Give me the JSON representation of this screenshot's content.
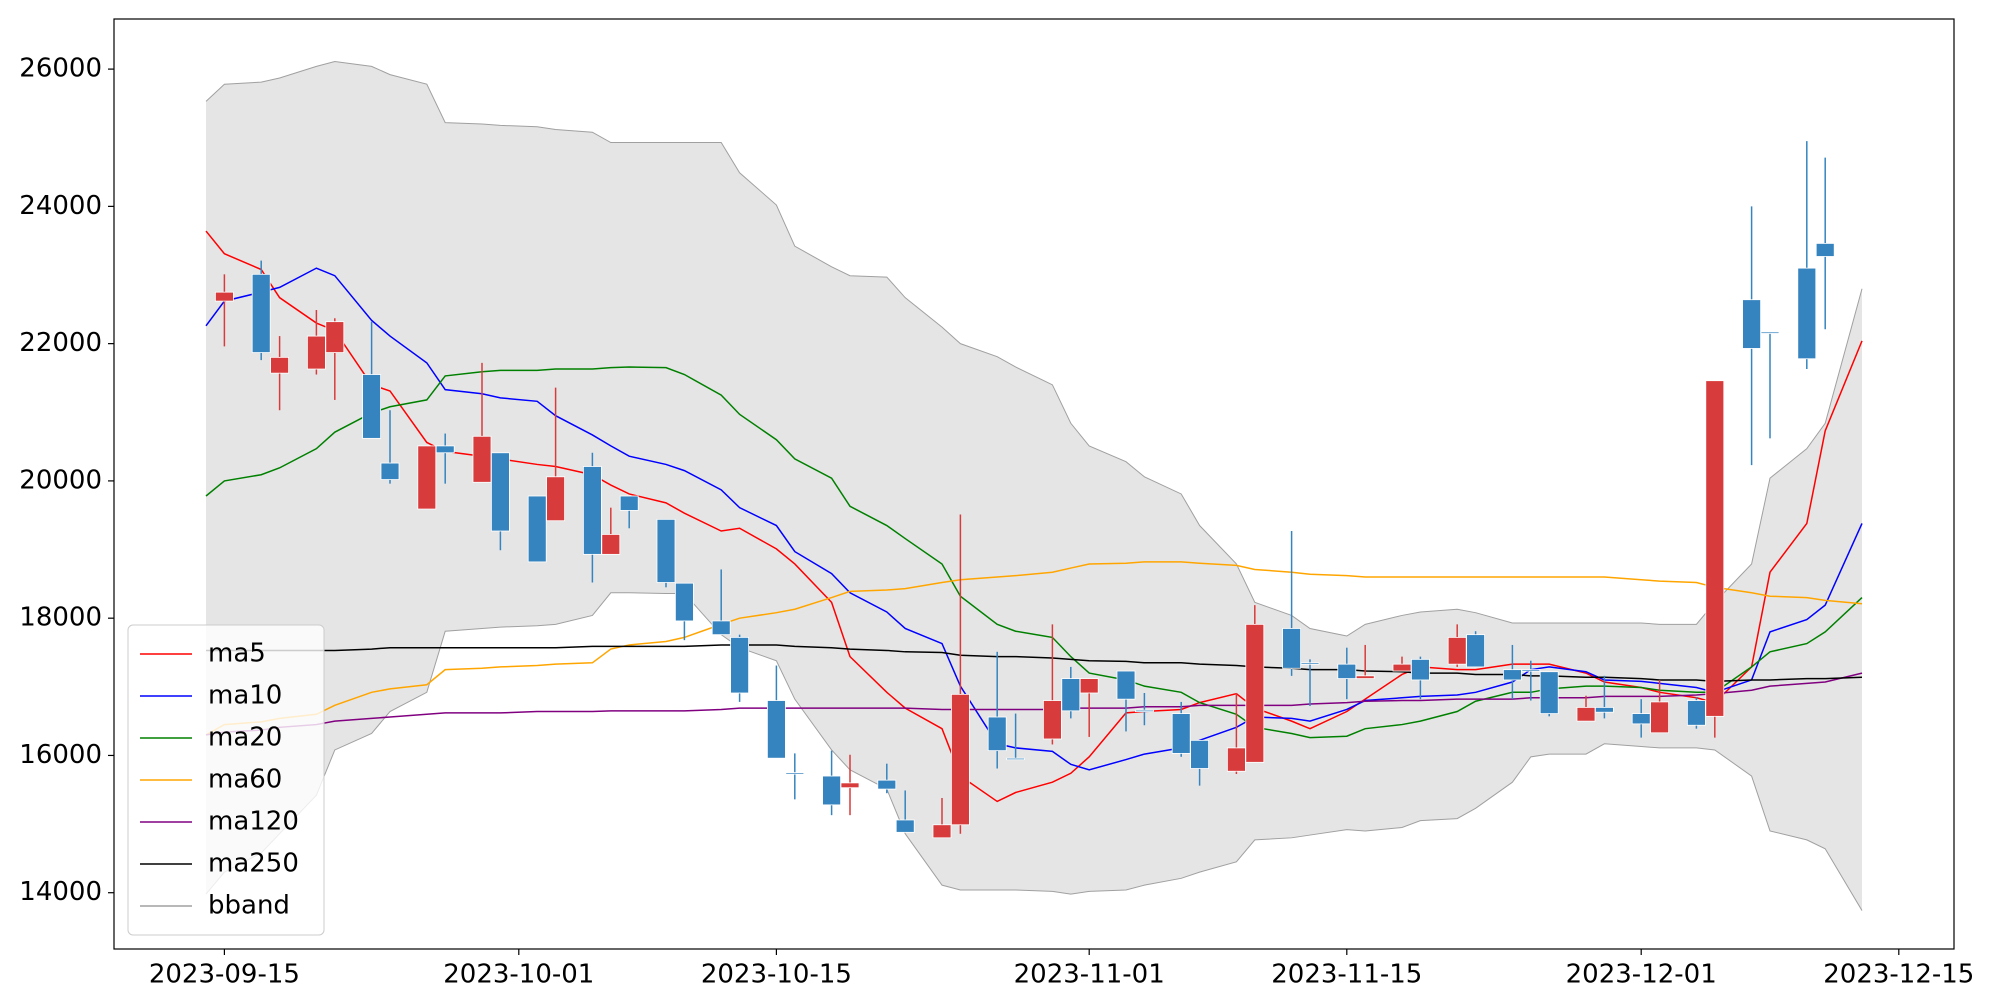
{
  "chart_data": {
    "type": "candlestick",
    "x": [
      "2023-09-14",
      "2023-09-15",
      "2023-09-17",
      "2023-09-18",
      "2023-09-20",
      "2023-09-21",
      "2023-09-23",
      "2023-09-24",
      "2023-09-26",
      "2023-09-27",
      "2023-09-29",
      "2023-09-30",
      "2023-10-02",
      "2023-10-03",
      "2023-10-05",
      "2023-10-06",
      "2023-10-07",
      "2023-10-09",
      "2023-10-10",
      "2023-10-12",
      "2023-10-13",
      "2023-10-15",
      "2023-10-16",
      "2023-10-18",
      "2023-10-19",
      "2023-10-21",
      "2023-10-22",
      "2023-10-24",
      "2023-10-25",
      "2023-10-27",
      "2023-10-28",
      "2023-10-30",
      "2023-10-31",
      "2023-11-01",
      "2023-11-03",
      "2023-11-04",
      "2023-11-06",
      "2023-11-07",
      "2023-11-09",
      "2023-11-10",
      "2023-11-12",
      "2023-11-13",
      "2023-11-15",
      "2023-11-16",
      "2023-11-18",
      "2023-11-19",
      "2023-11-21",
      "2023-11-22",
      "2023-11-24",
      "2023-11-25",
      "2023-11-26",
      "2023-11-28",
      "2023-11-29",
      "2023-12-01",
      "2023-12-02",
      "2023-12-04",
      "2023-12-05",
      "2023-12-07",
      "2023-12-08",
      "2023-12-10",
      "2023-12-11",
      "2023-12-13"
    ],
    "candles": {
      "up_color": "#d83b3b",
      "down_color": "#3584bf",
      "open": [
        null,
        22620,
        23010,
        21570,
        21630,
        21870,
        21550,
        20260,
        19590,
        20510,
        19980,
        20410,
        19780,
        19420,
        20210,
        18930,
        19780,
        19440,
        18510,
        17960,
        17720,
        16800,
        15750,
        15700,
        15530,
        15640,
        15060,
        14800,
        14990,
        16560,
        15960,
        16240,
        17120,
        16910,
        17230,
        16660,
        16610,
        16220,
        15770,
        15900,
        17850,
        17350,
        17330,
        17120,
        17230,
        17400,
        17330,
        17760,
        17250,
        17250,
        17220,
        16500,
        16700,
        16610,
        16330,
        16800,
        16570,
        22640,
        22170,
        23100,
        23460,
        null
      ],
      "high": [
        null,
        23010,
        23210,
        22110,
        22490,
        22370,
        22320,
        21030,
        20510,
        20690,
        21720,
        20410,
        19780,
        21360,
        20410,
        19610,
        19780,
        19440,
        18510,
        18710,
        17760,
        17310,
        16030,
        16070,
        16010,
        15880,
        15490,
        15380,
        19510,
        17510,
        16610,
        17910,
        17290,
        17120,
        17230,
        16910,
        16780,
        16220,
        16910,
        18190,
        19270,
        17400,
        17570,
        17610,
        17440,
        17440,
        17910,
        17810,
        17610,
        17380,
        17220,
        16870,
        17160,
        16820,
        17100,
        16850,
        21460,
        24000,
        22170,
        24950,
        24710,
        null
      ],
      "low": [
        null,
        21960,
        21760,
        21030,
        21550,
        21180,
        20620,
        19960,
        19590,
        19960,
        19980,
        18990,
        18820,
        19420,
        18520,
        18930,
        19310,
        18450,
        17680,
        17760,
        16780,
        15960,
        15360,
        15130,
        15130,
        15450,
        14880,
        14800,
        14860,
        15810,
        15940,
        16160,
        16540,
        16270,
        16350,
        16440,
        15980,
        15560,
        15730,
        15900,
        17160,
        16720,
        16820,
        17120,
        17230,
        16820,
        17290,
        17290,
        16820,
        16800,
        16570,
        16500,
        16540,
        16260,
        16330,
        16390,
        16260,
        20230,
        20620,
        21630,
        22210,
        null
      ],
      "close": [
        null,
        22750,
        21870,
        21800,
        22110,
        22320,
        20620,
        20020,
        20510,
        20410,
        20650,
        19270,
        18820,
        20060,
        18930,
        19220,
        19570,
        18520,
        17960,
        17760,
        16910,
        15960,
        15730,
        15280,
        15600,
        15510,
        14880,
        14990,
        16890,
        16070,
        15940,
        16800,
        16650,
        17120,
        16820,
        16640,
        16030,
        15810,
        16110,
        17910,
        17270,
        17330,
        17120,
        17160,
        17330,
        17100,
        17720,
        17290,
        17100,
        17230,
        16610,
        16700,
        16630,
        16460,
        16780,
        16440,
        21460,
        21930,
        22150,
        21780,
        23270,
        null
      ]
    },
    "series": [
      {
        "name": "ma5",
        "color": "#ff0000",
        "values": [
          23640,
          23310,
          23080,
          22670,
          22300,
          22190,
          21400,
          21310,
          20560,
          20430,
          20360,
          20320,
          20240,
          20210,
          20090,
          19940,
          19810,
          19680,
          19530,
          19270,
          19310,
          19010,
          18790,
          18230,
          17440,
          16920,
          16690,
          16390,
          15700,
          15330,
          15460,
          15610,
          15740,
          15980,
          16620,
          16640,
          16670,
          16770,
          16900,
          16690,
          16500,
          16390,
          16640,
          16820,
          17180,
          17290,
          17250,
          17250,
          17330,
          17330,
          17330,
          17200,
          17070,
          16990,
          16920,
          16840,
          16770,
          17290,
          18670,
          19380,
          20730,
          22040
        ]
      },
      {
        "name": "ma10",
        "color": "#0000ff",
        "values": [
          22260,
          22620,
          22750,
          22820,
          23100,
          22990,
          22340,
          22110,
          21720,
          21330,
          21270,
          21210,
          21160,
          20950,
          20670,
          20510,
          20360,
          20240,
          20150,
          19870,
          19610,
          19350,
          18970,
          18650,
          18370,
          18090,
          17850,
          17630,
          17010,
          16170,
          16110,
          16060,
          15870,
          15790,
          15940,
          16020,
          16110,
          16220,
          16410,
          16560,
          16540,
          16500,
          16670,
          16800,
          16840,
          16860,
          16880,
          16920,
          17070,
          17250,
          17290,
          17220,
          17100,
          17080,
          17050,
          16990,
          16920,
          17100,
          17800,
          17980,
          18190,
          19380
        ]
      },
      {
        "name": "ma20",
        "color": "#008000",
        "values": [
          19780,
          20000,
          20090,
          20190,
          20470,
          20710,
          20990,
          21080,
          21180,
          21530,
          21590,
          21610,
          21610,
          21630,
          21630,
          21650,
          21660,
          21650,
          21550,
          21250,
          20970,
          20600,
          20320,
          20040,
          19630,
          19350,
          19160,
          18790,
          18320,
          17910,
          17810,
          17720,
          17440,
          17200,
          17100,
          17010,
          16920,
          16770,
          16600,
          16410,
          16320,
          16260,
          16280,
          16390,
          16450,
          16500,
          16640,
          16790,
          16920,
          16920,
          16970,
          17010,
          17010,
          16990,
          16950,
          16920,
          16920,
          17290,
          17510,
          17630,
          17800,
          18300
        ]
      },
      {
        "name": "ma60",
        "color": "#ffa500",
        "values": [
          16300,
          16450,
          16490,
          16540,
          16600,
          16730,
          16920,
          16970,
          17030,
          17250,
          17270,
          17290,
          17310,
          17330,
          17350,
          17550,
          17610,
          17660,
          17720,
          17910,
          18000,
          18080,
          18130,
          18300,
          18390,
          18410,
          18430,
          18520,
          18560,
          18600,
          18620,
          18670,
          18730,
          18790,
          18800,
          18820,
          18820,
          18800,
          18770,
          18710,
          18670,
          18640,
          18620,
          18600,
          18600,
          18600,
          18600,
          18600,
          18600,
          18600,
          18600,
          18600,
          18600,
          18560,
          18540,
          18520,
          18450,
          18370,
          18320,
          18300,
          18260,
          18210
        ]
      },
      {
        "name": "ma120",
        "color": "#800080",
        "values": [
          16300,
          16340,
          16370,
          16410,
          16450,
          16500,
          16540,
          16560,
          16600,
          16620,
          16620,
          16620,
          16640,
          16640,
          16640,
          16650,
          16650,
          16650,
          16650,
          16670,
          16690,
          16690,
          16690,
          16690,
          16690,
          16690,
          16690,
          16670,
          16670,
          16670,
          16670,
          16670,
          16690,
          16690,
          16690,
          16710,
          16710,
          16730,
          16730,
          16730,
          16730,
          16750,
          16770,
          16790,
          16800,
          16800,
          16820,
          16820,
          16820,
          16840,
          16840,
          16840,
          16860,
          16860,
          16860,
          16880,
          16900,
          16950,
          17010,
          17050,
          17070,
          17200
        ]
      },
      {
        "name": "ma250",
        "color": "#000000",
        "values": [
          17530,
          17530,
          17530,
          17530,
          17530,
          17530,
          17550,
          17570,
          17570,
          17570,
          17570,
          17570,
          17570,
          17570,
          17590,
          17590,
          17590,
          17590,
          17590,
          17610,
          17610,
          17610,
          17590,
          17570,
          17550,
          17530,
          17510,
          17500,
          17460,
          17440,
          17440,
          17420,
          17400,
          17380,
          17370,
          17350,
          17350,
          17330,
          17310,
          17290,
          17270,
          17250,
          17250,
          17230,
          17220,
          17200,
          17200,
          17180,
          17180,
          17160,
          17160,
          17140,
          17140,
          17120,
          17100,
          17100,
          17080,
          17100,
          17100,
          17120,
          17120,
          17140
        ]
      },
      {
        "name": "bband",
        "color": "#a0a0a0",
        "fill": "#e5e5e5",
        "upper": [
          25530,
          25780,
          25810,
          25870,
          26040,
          26110,
          26040,
          25920,
          25780,
          25220,
          25200,
          25180,
          25160,
          25120,
          25080,
          24930,
          24930,
          24930,
          24930,
          24930,
          24490,
          24020,
          23420,
          23120,
          22990,
          22970,
          22670,
          22240,
          22000,
          21810,
          21660,
          21400,
          20840,
          20510,
          20280,
          20060,
          19810,
          19350,
          18790,
          18230,
          18040,
          17850,
          17740,
          17910,
          18040,
          18090,
          18130,
          18080,
          17930,
          17930,
          17930,
          17930,
          17930,
          17930,
          17910,
          17910,
          18230,
          18790,
          20040,
          20470,
          20840,
          22800
        ],
        "lower": [
          13980,
          14300,
          14580,
          14860,
          15420,
          16080,
          16320,
          16640,
          16920,
          17810,
          17850,
          17870,
          17890,
          17910,
          18040,
          18370,
          18370,
          18360,
          18360,
          17760,
          17570,
          17380,
          16820,
          16080,
          15790,
          15510,
          14860,
          14110,
          14040,
          14040,
          14040,
          14020,
          13980,
          14020,
          14040,
          14110,
          14210,
          14300,
          14450,
          14770,
          14800,
          14840,
          14920,
          14900,
          14950,
          15050,
          15080,
          15230,
          15610,
          15980,
          16020,
          16020,
          16170,
          16130,
          16110,
          16110,
          16080,
          15700,
          14900,
          14770,
          14640,
          13740
        ]
      }
    ],
    "xlim": [
      "2023-09-09",
      "2023-12-18"
    ],
    "xticks": [
      "2023-09-15",
      "2023-10-01",
      "2023-10-15",
      "2023-11-01",
      "2023-11-15",
      "2023-12-01",
      "2023-12-15"
    ],
    "ylim": [
      13180,
      26730
    ],
    "yticks": [
      14000,
      16000,
      18000,
      20000,
      22000,
      24000,
      26000
    ],
    "legend": "lower left"
  }
}
